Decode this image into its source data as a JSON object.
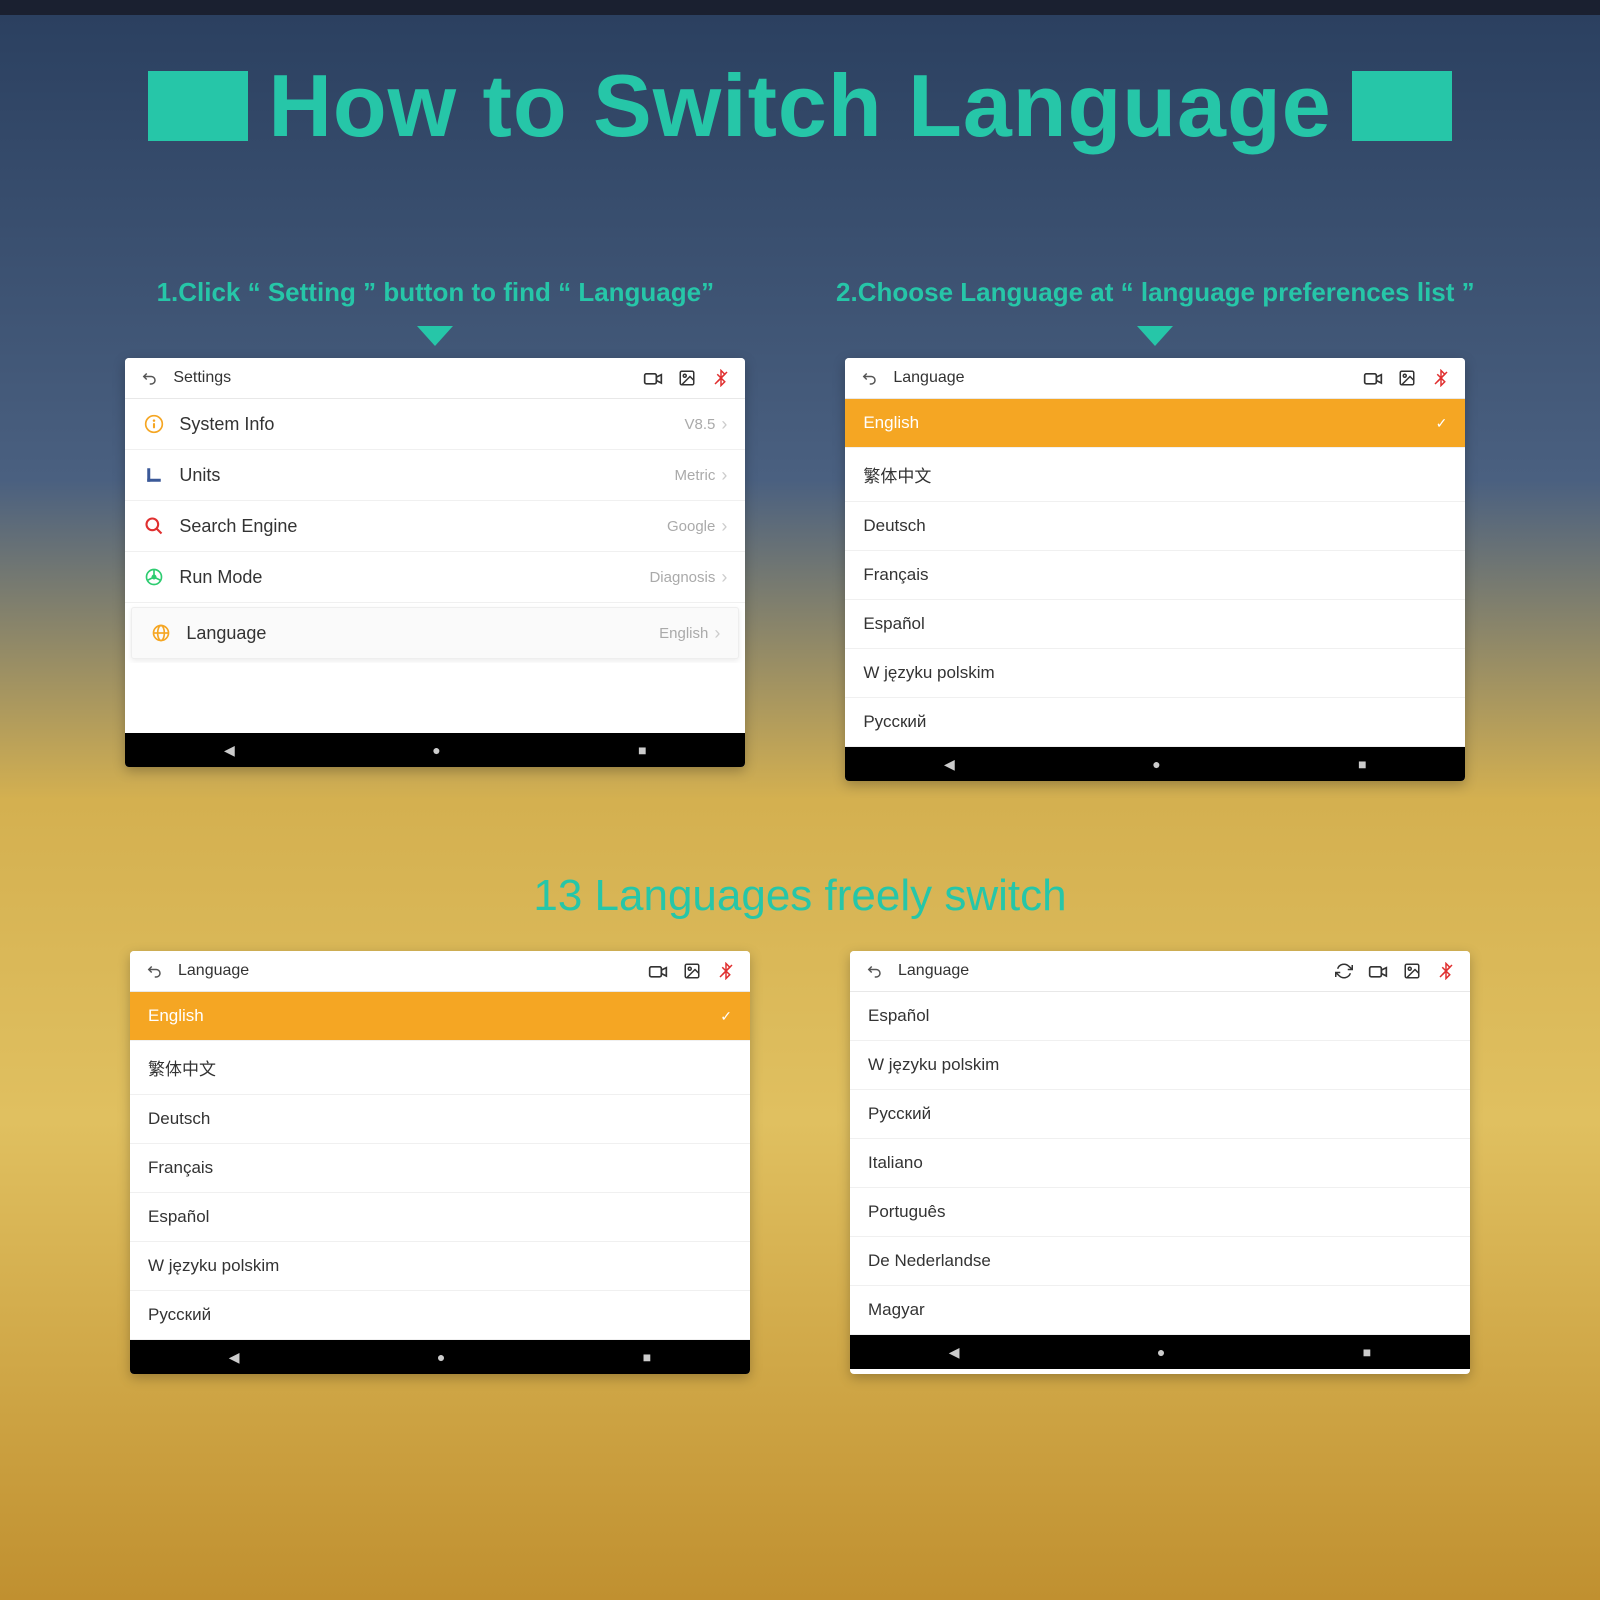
{
  "colors": {
    "accent": "#26c6a8",
    "highlight": "#f5a623",
    "bt_red": "#e03030"
  },
  "title": "How to Switch Language",
  "step1_label": "1.Click “ Setting ” button to find “ Language”",
  "step2_label": "2.Choose Language at “ language preferences list ”",
  "subtitle": "13 Languages freely switch",
  "settings_screen": {
    "header": "Settings",
    "rows": [
      {
        "icon": "info",
        "icon_color": "#f5a623",
        "label": "System Info",
        "value": "V8.5"
      },
      {
        "icon": "units",
        "icon_color": "#3b5998",
        "label": "Units",
        "value": "Metric"
      },
      {
        "icon": "search",
        "icon_color": "#e03030",
        "label": "Search Engine",
        "value": "Google"
      },
      {
        "icon": "wheel",
        "icon_color": "#2ecc71",
        "label": "Run Mode",
        "value": "Diagnosis"
      },
      {
        "icon": "globe",
        "icon_color": "#f5a623",
        "label": "Language",
        "value": "English",
        "highlight": true
      }
    ]
  },
  "lang_screen_a": {
    "header": "Language",
    "rows": [
      {
        "label": "English",
        "selected": true
      },
      {
        "label": "繁体中文"
      },
      {
        "label": "Deutsch"
      },
      {
        "label": "Français"
      },
      {
        "label": "Español"
      },
      {
        "label": "W języku polskim"
      },
      {
        "label": "Русский"
      }
    ]
  },
  "lang_screen_b": {
    "header": "Language",
    "rows": [
      {
        "label": "English",
        "selected": true
      },
      {
        "label": "繁体中文"
      },
      {
        "label": "Deutsch"
      },
      {
        "label": "Français"
      },
      {
        "label": "Español"
      },
      {
        "label": "W języku polskim"
      },
      {
        "label": "Русский"
      }
    ]
  },
  "lang_screen_c": {
    "header": "Language",
    "extra_sync": true,
    "rows": [
      {
        "label": "Español"
      },
      {
        "label": "W języku polskim"
      },
      {
        "label": "Русский"
      },
      {
        "label": "Italiano"
      },
      {
        "label": "Português"
      },
      {
        "label": "De Nederlandse"
      },
      {
        "label": "Magyar"
      }
    ]
  }
}
